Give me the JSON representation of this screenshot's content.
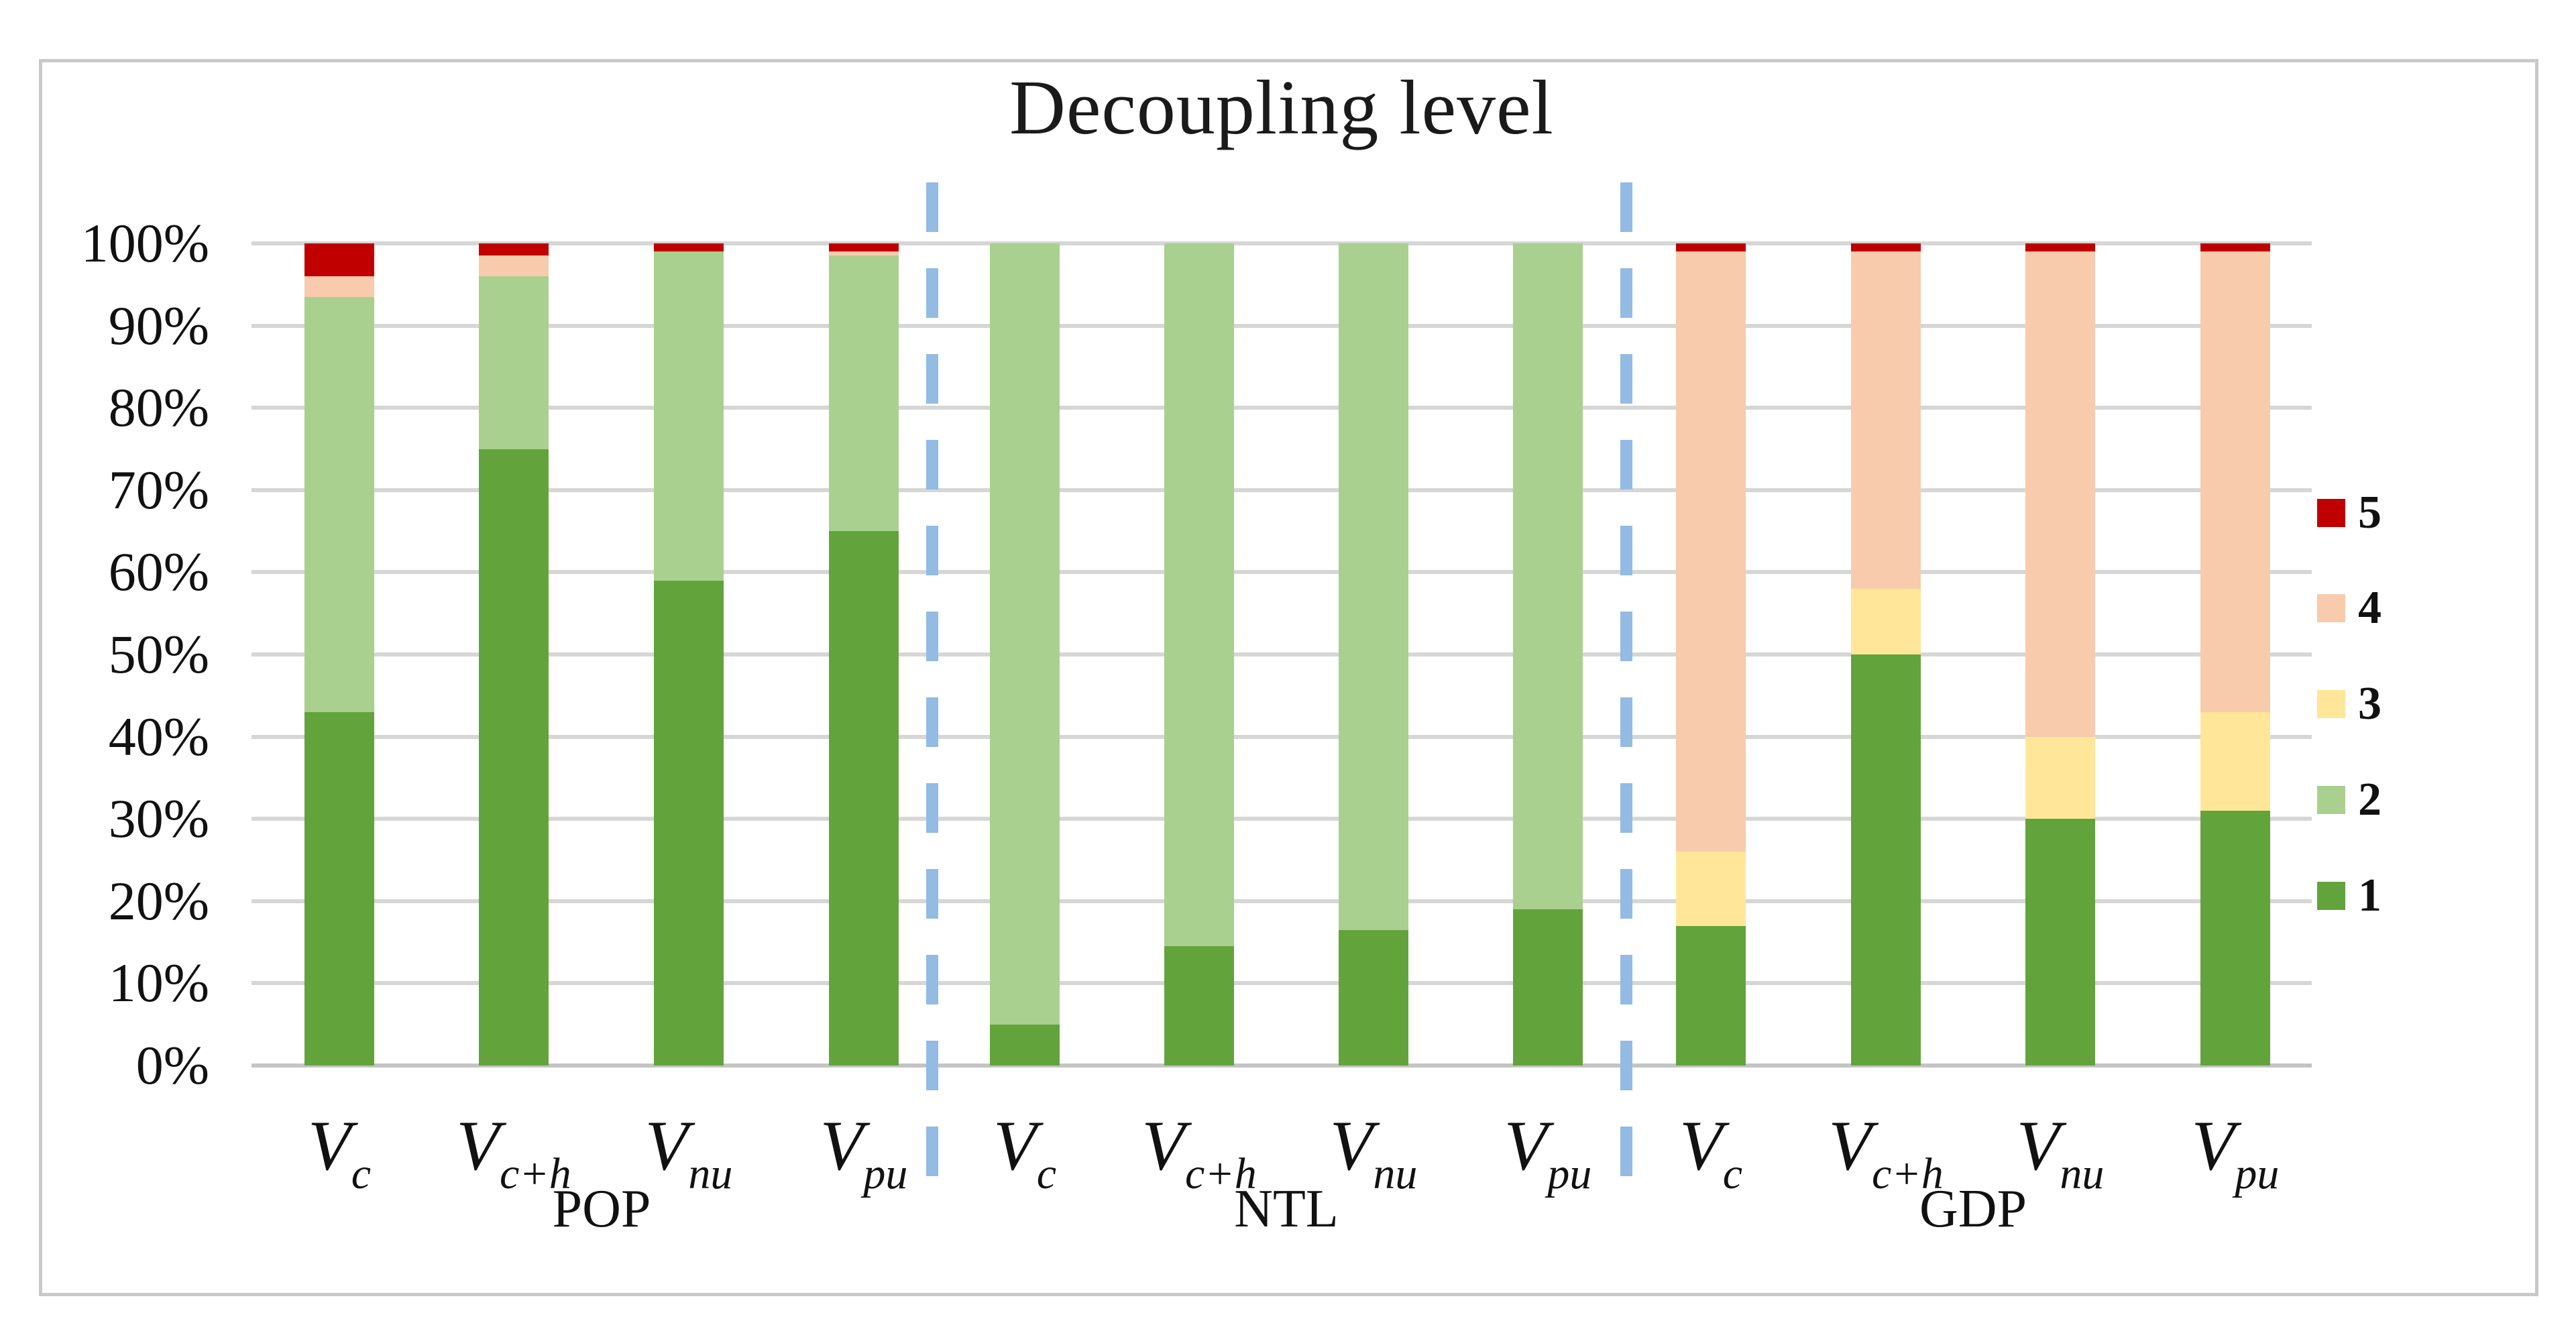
{
  "title": "Decoupling level",
  "y_axis": {
    "tick_labels": [
      "100%",
      "90%",
      "80%",
      "70%",
      "60%",
      "50%",
      "40%",
      "30%",
      "20%",
      "10%",
      "0%"
    ]
  },
  "x_axis": {
    "bar_labels": [
      {
        "group": "POP",
        "base": "V",
        "sub": "c"
      },
      {
        "group": "POP",
        "base": "V",
        "sub": "c+h"
      },
      {
        "group": "POP",
        "base": "V",
        "sub": "nu"
      },
      {
        "group": "POP",
        "base": "V",
        "sub": "pu"
      },
      {
        "group": "NTL",
        "base": "V",
        "sub": "c"
      },
      {
        "group": "NTL",
        "base": "V",
        "sub": "c+h"
      },
      {
        "group": "NTL",
        "base": "V",
        "sub": "nu"
      },
      {
        "group": "NTL",
        "base": "V",
        "sub": "pu"
      },
      {
        "group": "GDP",
        "base": "V",
        "sub": "c"
      },
      {
        "group": "GDP",
        "base": "V",
        "sub": "c+h"
      },
      {
        "group": "GDP",
        "base": "V",
        "sub": "nu"
      },
      {
        "group": "GDP",
        "base": "V",
        "sub": "pu"
      }
    ],
    "group_labels": [
      "POP",
      "NTL",
      "GDP"
    ]
  },
  "legend": {
    "entries": [
      {
        "label": "5",
        "color": "#c00000"
      },
      {
        "label": "4",
        "color": "#f7cbac"
      },
      {
        "label": "3",
        "color": "#ffe699"
      },
      {
        "label": "2",
        "color": "#a9d08e"
      },
      {
        "label": "1",
        "color": "#63a33c"
      }
    ]
  },
  "colors": {
    "level1": "#63a33c",
    "level2": "#a9d08e",
    "level3": "#ffe699",
    "level4": "#f7cbac",
    "level5": "#c00000",
    "gridline": "#d6d6d6",
    "separator": "#93bbe4",
    "frame_border": "#c9c9c9"
  },
  "chart_data": {
    "type": "bar",
    "stacked": true,
    "value_unit": "percent",
    "title": "Decoupling level",
    "ylim": [
      0,
      100
    ],
    "grid": "horizontal",
    "legend_position": "right",
    "groups": [
      "POP",
      "NTL",
      "GDP"
    ],
    "categories": [
      "POP V_c",
      "POP V_c+h",
      "POP V_nu",
      "POP V_pu",
      "NTL V_c",
      "NTL V_c+h",
      "NTL V_nu",
      "NTL V_pu",
      "GDP V_c",
      "GDP V_c+h",
      "GDP V_nu",
      "GDP V_pu"
    ],
    "series": [
      {
        "name": "1",
        "color": "#63a33c",
        "values": [
          43,
          75,
          59,
          65,
          5,
          14.5,
          16.5,
          19,
          17,
          50,
          30,
          31
        ]
      },
      {
        "name": "2",
        "color": "#a9d08e",
        "values": [
          50.5,
          21,
          40,
          33.5,
          95,
          85.5,
          83.5,
          81,
          0,
          0,
          0,
          0
        ]
      },
      {
        "name": "3",
        "color": "#ffe699",
        "values": [
          0,
          0,
          0,
          0,
          0,
          0,
          0,
          0,
          9,
          8,
          10,
          12
        ]
      },
      {
        "name": "4",
        "color": "#f7cbac",
        "values": [
          2.5,
          2.5,
          0,
          0.5,
          0,
          0,
          0,
          0,
          73,
          41,
          59,
          56
        ]
      },
      {
        "name": "5",
        "color": "#c00000",
        "values": [
          4,
          1.5,
          1,
          1,
          0,
          0,
          0,
          0,
          1,
          1,
          1,
          1
        ]
      }
    ]
  }
}
